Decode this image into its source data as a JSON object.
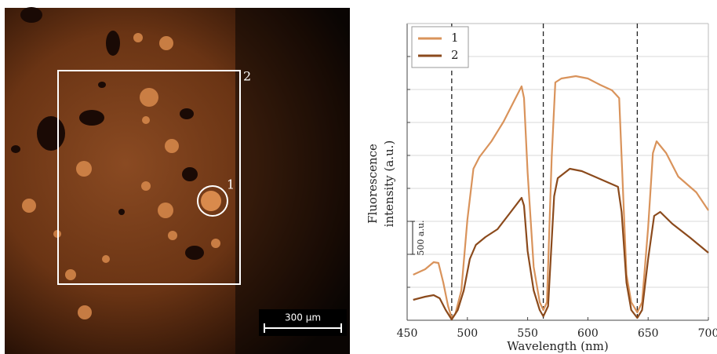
{
  "chart_data": {
    "type": "line",
    "xlabel": "Wavelength (nm)",
    "ylabel": [
      "Fluorescence",
      "intensity (a.u.)"
    ],
    "xlim": [
      450,
      700
    ],
    "xticks": [
      450,
      500,
      550,
      600,
      650,
      700
    ],
    "ylim": [
      0,
      4500
    ],
    "yticks": [
      0,
      500,
      1000,
      1500,
      2000,
      2500,
      3000,
      3500,
      4000,
      4500
    ],
    "grid": true,
    "legend": "upper left",
    "dashed_lines": [
      487,
      563,
      641
    ],
    "scale_bar": {
      "value": 500,
      "label": "500 a.u."
    },
    "series": [
      {
        "name": "1",
        "color": "#d9935b",
        "x": [
          455,
          465,
          472,
          476,
          480,
          484,
          487,
          490,
          495,
          500,
          505,
          510,
          520,
          530,
          540,
          545,
          547,
          550,
          555,
          560,
          563,
          566,
          570,
          573,
          578,
          590,
          600,
          610,
          620,
          626,
          628,
          632,
          636,
          641,
          645,
          650,
          654,
          657,
          665,
          675,
          690,
          700
        ],
        "values": [
          690,
          774,
          881,
          869,
          571,
          214,
          36,
          95,
          452,
          1524,
          2298,
          2476,
          2714,
          3012,
          3369,
          3548,
          3369,
          2238,
          810,
          274,
          155,
          274,
          2476,
          3607,
          3667,
          3702,
          3667,
          3571,
          3488,
          3369,
          2476,
          690,
          274,
          119,
          274,
          1405,
          2536,
          2714,
          2536,
          2179,
          1940,
          1667
        ]
      },
      {
        "name": "2",
        "color": "#8b4a1c",
        "x": [
          455,
          465,
          472,
          477,
          482,
          487,
          492,
          497,
          502,
          507,
          515,
          525,
          535,
          545,
          547,
          550,
          555,
          560,
          563,
          567,
          572,
          575,
          585,
          595,
          610,
          625,
          628,
          632,
          636,
          641,
          645,
          650,
          655,
          660,
          670,
          685,
          700
        ],
        "values": [
          310,
          357,
          381,
          333,
          155,
          12,
          155,
          452,
          929,
          1143,
          1262,
          1381,
          1619,
          1857,
          1738,
          1048,
          452,
          155,
          60,
          214,
          1881,
          2155,
          2298,
          2262,
          2143,
          2024,
          1643,
          571,
          155,
          36,
          155,
          929,
          1583,
          1643,
          1464,
          1250,
          1024
        ]
      }
    ]
  },
  "image": {
    "roi_labels": [
      "2",
      "1"
    ],
    "scale_bar": "300 µm"
  }
}
